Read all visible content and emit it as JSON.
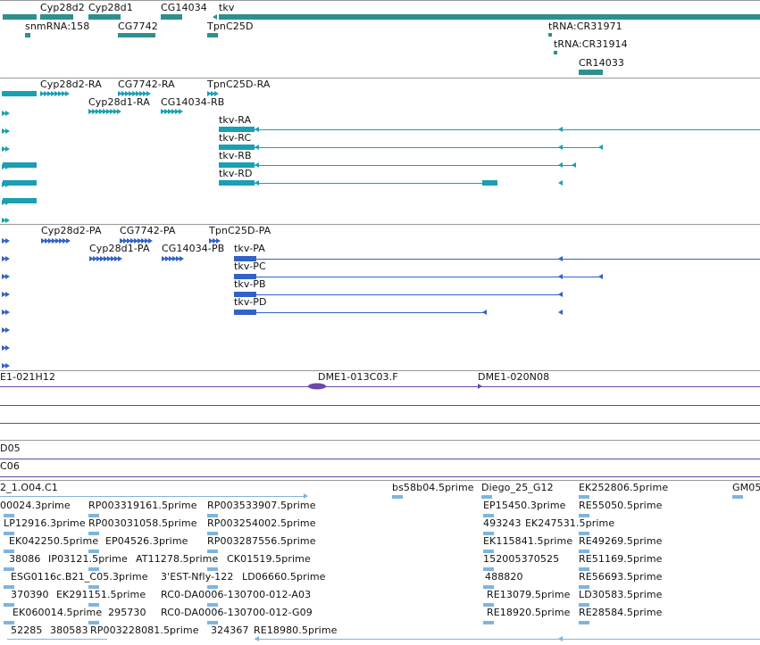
{
  "colors": {
    "gene": "#2f8f8f",
    "transcript": "#1a9fb4",
    "protein": "#3162c8",
    "clone": "#6a4aa8",
    "est": "#7fb5dc",
    "divider": "#9a9a9a"
  },
  "genes": [
    {
      "label": "Cyp28d2"
    },
    {
      "label": "Cyp28d1"
    },
    {
      "label": "CG14034"
    },
    {
      "label": "tkv"
    },
    {
      "label": "snmRNA:158"
    },
    {
      "label": "CG7742"
    },
    {
      "label": "TpnC25D"
    },
    {
      "label": "tRNA:CR31971"
    },
    {
      "label": "tRNA:CR31914"
    },
    {
      "label": "CR14033"
    }
  ],
  "transcripts": [
    {
      "label": "Cyp28d2-RA"
    },
    {
      "label": "CG7742-RA"
    },
    {
      "label": "TpnC25D-RA"
    },
    {
      "label": "Cyp28d1-RA"
    },
    {
      "label": "CG14034-RB"
    },
    {
      "label": "tkv-RA"
    },
    {
      "label": "tkv-RC"
    },
    {
      "label": "tkv-RB"
    },
    {
      "label": "tkv-RD"
    }
  ],
  "proteins": [
    {
      "label": "Cyp28d2-PA"
    },
    {
      "label": "CG7742-PA"
    },
    {
      "label": "TpnC25D-PA"
    },
    {
      "label": "Cyp28d1-PA"
    },
    {
      "label": "CG14034-PB"
    },
    {
      "label": "tkv-PA"
    },
    {
      "label": "tkv-PC"
    },
    {
      "label": "tkv-PB"
    },
    {
      "label": "tkv-PD"
    }
  ],
  "clones": [
    {
      "label": "E1-021H12"
    },
    {
      "label": "DME1-013C03.F"
    },
    {
      "label": "DME1-020N08"
    },
    {
      "label": "D05"
    },
    {
      "label": "C06"
    }
  ],
  "ests": [
    {
      "label": "2_1.O04.C1"
    },
    {
      "label": "bs58b04.5prime"
    },
    {
      "label": "Diego_25_G12"
    },
    {
      "label": "EK252806.5prime"
    },
    {
      "label": "GM05"
    },
    {
      "label": "00024.3prime"
    },
    {
      "label": "RP003319161.5prime"
    },
    {
      "label": "RP003533907.5prime"
    },
    {
      "label": "EP15450.3prime"
    },
    {
      "label": "RE55050.5prime"
    },
    {
      "label": "LP12916.3prime"
    },
    {
      "label": "RP003031058.5prime"
    },
    {
      "label": "RP003254002.5prime"
    },
    {
      "label": "493243"
    },
    {
      "label": "EK247531.5prime"
    },
    {
      "label": "EK042250.5prime"
    },
    {
      "label": "EP04526.3prime"
    },
    {
      "label": "RP003287556.5prime"
    },
    {
      "label": "EK115841.5prime"
    },
    {
      "label": "RE49269.5prime"
    },
    {
      "label": "38086"
    },
    {
      "label": "IP03121.5prime"
    },
    {
      "label": "AT11278.5prime"
    },
    {
      "label": "CK01519.5prime"
    },
    {
      "label": "152005370525"
    },
    {
      "label": "RE51169.5prime"
    },
    {
      "label": "ESG0116c.B21_C05.3prime"
    },
    {
      "label": "3'EST-Nfly-122"
    },
    {
      "label": "LD06660.5prime"
    },
    {
      "label": "488820"
    },
    {
      "label": "RE56693.5prime"
    },
    {
      "label": "370390"
    },
    {
      "label": "EK291151.5prime"
    },
    {
      "label": "RC0-DA0006-130700-012-A03"
    },
    {
      "label": "RE13079.5prime"
    },
    {
      "label": "LD30583.5prime"
    },
    {
      "label": "EK060014.5prime"
    },
    {
      "label": "295730"
    },
    {
      "label": "RC0-DA0006-130700-012-G09"
    },
    {
      "label": "RE18920.5prime"
    },
    {
      "label": "RE28584.5prime"
    },
    {
      "label": "52285"
    },
    {
      "label": "380583"
    },
    {
      "label": "RP003228081.5prime"
    },
    {
      "label": "324367"
    },
    {
      "label": "RE18980.5prime"
    }
  ]
}
